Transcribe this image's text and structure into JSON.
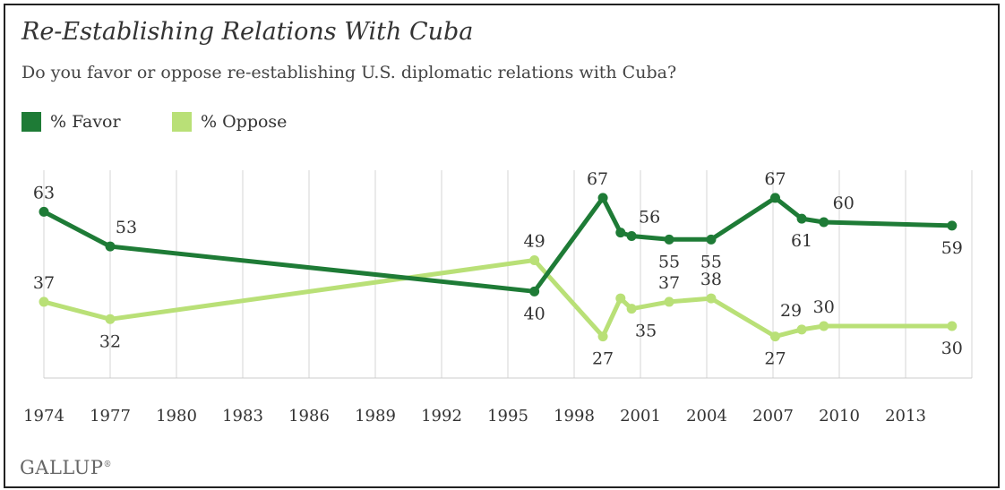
{
  "chart_data": {
    "type": "line",
    "title": "Re-Establishing Relations With Cuba",
    "subtitle": "Do you favor or oppose re-establishing U.S. diplomatic relations with Cuba?",
    "x_tick_labels": [
      "1974",
      "1977",
      "1980",
      "1983",
      "1986",
      "1989",
      "1992",
      "1995",
      "1998",
      "2001",
      "2004",
      "2007",
      "2010",
      "2013"
    ],
    "xlim": [
      1974,
      2016
    ],
    "ylim": [
      15,
      75
    ],
    "grid": "vertical",
    "legend_position": "top-left",
    "series": [
      {
        "name": "% Favor",
        "color": "#1e7b36",
        "points": [
          {
            "x": 1974.0,
            "y": 63,
            "label": "63"
          },
          {
            "x": 1977.0,
            "y": 53,
            "label": "53"
          },
          {
            "x": 1996.2,
            "y": 40,
            "label": "40"
          },
          {
            "x": 1999.3,
            "y": 67,
            "label": "67"
          },
          {
            "x": 2000.1,
            "y": 57,
            "label": ""
          },
          {
            "x": 2000.6,
            "y": 56,
            "label": "56"
          },
          {
            "x": 2002.3,
            "y": 55,
            "label": "55"
          },
          {
            "x": 2004.2,
            "y": 55,
            "label": "55"
          },
          {
            "x": 2007.1,
            "y": 67,
            "label": "67"
          },
          {
            "x": 2008.3,
            "y": 61,
            "label": "61"
          },
          {
            "x": 2009.3,
            "y": 60,
            "label": "60"
          },
          {
            "x": 2015.1,
            "y": 59,
            "label": "59"
          }
        ]
      },
      {
        "name": "% Oppose",
        "color": "#b9e077",
        "points": [
          {
            "x": 1974.0,
            "y": 37,
            "label": "37"
          },
          {
            "x": 1977.0,
            "y": 32,
            "label": "32"
          },
          {
            "x": 1996.2,
            "y": 49,
            "label": "49"
          },
          {
            "x": 1999.3,
            "y": 27,
            "label": "27"
          },
          {
            "x": 2000.1,
            "y": 38,
            "label": ""
          },
          {
            "x": 2000.6,
            "y": 35,
            "label": "35"
          },
          {
            "x": 2002.3,
            "y": 37,
            "label": "37"
          },
          {
            "x": 2004.2,
            "y": 38,
            "label": "38"
          },
          {
            "x": 2007.1,
            "y": 27,
            "label": "27"
          },
          {
            "x": 2008.3,
            "y": 29,
            "label": "29"
          },
          {
            "x": 2009.3,
            "y": 30,
            "label": "30"
          },
          {
            "x": 2015.1,
            "y": 30,
            "label": "30"
          }
        ]
      }
    ]
  },
  "brand": {
    "name": "GALLUP",
    "mark": "®"
  }
}
